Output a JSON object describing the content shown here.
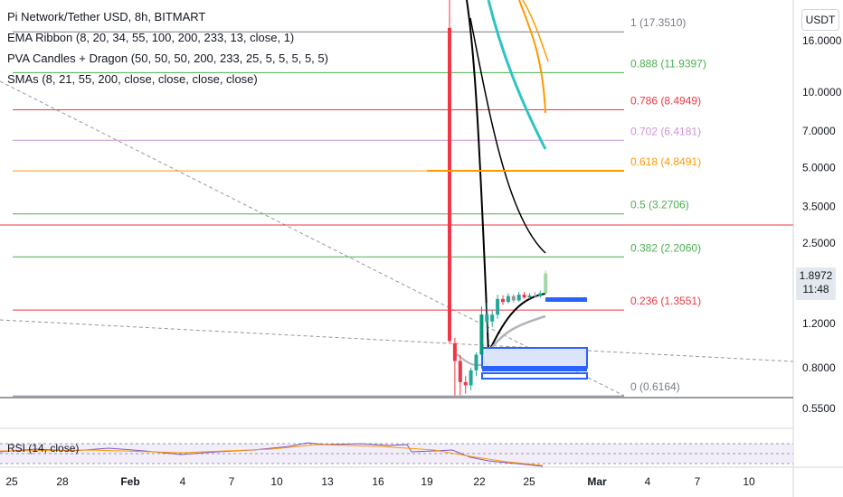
{
  "header": {
    "title": "Pi Network/Tether USD, 8h, BITMART",
    "indicators": [
      "EMA Ribbon (8, 20, 34, 55, 100, 200, 233, 13, close, 1)",
      "PVA Candles + Dragon (50, 50, 50, 200, 233, 25, 5, 5, 5, 5, 5)",
      "SMAs (8, 21, 55, 200, close, close, close, close)"
    ]
  },
  "price_axis": {
    "unit_label": "USDT",
    "current_price": "1.8972",
    "countdown": "11:48"
  },
  "rsi": {
    "label": "RSI (14, close)"
  },
  "chart_data": {
    "type": "candlestick",
    "scale": "log",
    "y_ticks": [
      "16.0000",
      "10.0000",
      "7.0000",
      "5.0000",
      "3.5000",
      "2.5000",
      "1.2000",
      "0.8000",
      "0.5500"
    ],
    "y_tick_values": [
      16.0,
      10.0,
      7.0,
      5.0,
      3.5,
      2.5,
      1.2,
      0.8,
      0.55
    ],
    "x_ticks": [
      "25",
      "28",
      "Feb",
      "4",
      "7",
      "10",
      "13",
      "16",
      "19",
      "22",
      "25",
      "Mar",
      "4",
      "7",
      "10"
    ],
    "fib_levels": [
      {
        "label": "1 (17.3510)",
        "value": 17.351,
        "color": "#787b86"
      },
      {
        "label": "0.888 (11.9397)",
        "value": 11.9397,
        "color": "#4caf50"
      },
      {
        "label": "0.786 (8.4949)",
        "value": 8.4949,
        "color": "#f23645"
      },
      {
        "label": "0.702 (6.4181)",
        "value": 6.4181,
        "color": "#ce93d8"
      },
      {
        "label": "0.618 (4.8491)",
        "value": 4.8491,
        "color": "#ff9800"
      },
      {
        "label": "0.5 (3.2706)",
        "value": 3.2706,
        "color": "#4caf50"
      },
      {
        "label": "0.382 (2.2060)",
        "value": 2.206,
        "color": "#4caf50"
      },
      {
        "label": "0.236 (1.3551)",
        "value": 1.3551,
        "color": "#f23645"
      },
      {
        "label": "0 (0.6164)",
        "value": 0.6164,
        "color": "#787b86"
      }
    ],
    "candles": [
      {
        "o": 18.0,
        "h": 30.0,
        "l": 1.0,
        "c": 1.02,
        "color": "#f23645"
      },
      {
        "o": 1.0,
        "h": 1.05,
        "l": 0.62,
        "c": 0.85,
        "color": "#f23645"
      },
      {
        "o": 0.85,
        "h": 0.9,
        "l": 0.62,
        "c": 0.7,
        "color": "#f23645"
      },
      {
        "o": 0.7,
        "h": 0.74,
        "l": 0.63,
        "c": 0.68,
        "color": "#f23645"
      },
      {
        "o": 0.68,
        "h": 0.8,
        "l": 0.65,
        "c": 0.78,
        "color": "#26a69a"
      },
      {
        "o": 0.78,
        "h": 0.92,
        "l": 0.74,
        "c": 0.9,
        "color": "#26a69a"
      },
      {
        "o": 0.9,
        "h": 1.4,
        "l": 0.85,
        "c": 1.3,
        "color": "#089981"
      },
      {
        "o": 1.3,
        "h": 1.45,
        "l": 1.1,
        "c": 1.22,
        "color": "#26a69a"
      },
      {
        "o": 1.22,
        "h": 1.35,
        "l": 1.16,
        "c": 1.3,
        "color": "#26a69a"
      },
      {
        "o": 1.3,
        "h": 1.56,
        "l": 1.25,
        "c": 1.5,
        "color": "#26a69a"
      },
      {
        "o": 1.5,
        "h": 1.55,
        "l": 1.42,
        "c": 1.46,
        "color": "#f23645"
      },
      {
        "o": 1.46,
        "h": 1.58,
        "l": 1.44,
        "c": 1.54,
        "color": "#26a69a"
      },
      {
        "o": 1.54,
        "h": 1.57,
        "l": 1.45,
        "c": 1.48,
        "color": "#9598a1"
      },
      {
        "o": 1.48,
        "h": 1.6,
        "l": 1.46,
        "c": 1.56,
        "color": "#26a69a"
      },
      {
        "o": 1.56,
        "h": 1.6,
        "l": 1.5,
        "c": 1.52,
        "color": "#f23645"
      },
      {
        "o": 1.52,
        "h": 1.58,
        "l": 1.5,
        "c": 1.55,
        "color": "#26a69a"
      },
      {
        "o": 1.55,
        "h": 1.6,
        "l": 1.52,
        "c": 1.54,
        "color": "#9598a1"
      },
      {
        "o": 1.54,
        "h": 1.62,
        "l": 1.52,
        "c": 1.58,
        "color": "#26a69a"
      },
      {
        "o": 1.58,
        "h": 1.95,
        "l": 1.56,
        "c": 1.8972,
        "color": "#a5d6a7"
      }
    ],
    "grid": false
  }
}
